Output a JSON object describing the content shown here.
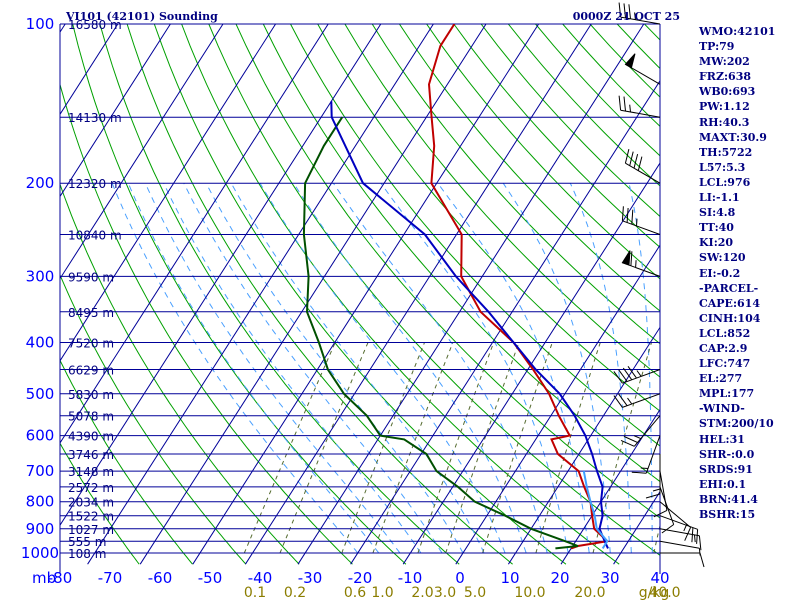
{
  "header": {
    "station": "VI101 (42101) Sounding",
    "time": "0000Z 21 OCT 25"
  },
  "indices": [
    "WMO:42101",
    "TP:79",
    "MW:202",
    "FRZ:638",
    "WB0:693",
    "PW:1.12",
    "RH:40.3",
    "MAXT:30.9",
    "TH:5722",
    "L57:5.3",
    "LCL:976",
    "LI:-1.1",
    "SI:4.8",
    "TT:40",
    "KI:20",
    "SW:120",
    "EI:-0.2",
    "-PARCEL-",
    "CAPE:614",
    "CINH:104",
    "LCL:852",
    "CAP:2.9",
    "LFC:747",
    "EL:277",
    "MPL:177",
    "-WIND-",
    "STM:200/10",
    "HEL:31",
    "SHR-:0.0",
    "SRDS:91",
    "EHI:0.1",
    "BRN:41.4",
    "BSHR:15"
  ],
  "chart_data": {
    "type": "line",
    "title": "VI101 (42101) Sounding",
    "subtitle": "0000Z 21 OCT 25",
    "pressure_unit": "mb",
    "mixing_ratio_unit": "g/kg",
    "pressure_ticks": [
      100,
      200,
      300,
      400,
      500,
      600,
      700,
      800,
      900,
      1000
    ],
    "pressure_gridlines": [
      100,
      150,
      200,
      250,
      300,
      350,
      400,
      450,
      500,
      550,
      600,
      650,
      700,
      750,
      800,
      850,
      900,
      950,
      1000
    ],
    "temperature_ticks": [
      -80,
      -70,
      -60,
      -50,
      -40,
      -30,
      -20,
      -10,
      0,
      10,
      20,
      30,
      40
    ],
    "temperature_tick_labels": [
      "-80",
      "-70",
      "-60",
      "-50",
      "-40",
      "-30",
      "-20",
      "-10",
      "0",
      "10",
      "20",
      "30",
      "40"
    ],
    "mixing_ratio_labels": [
      "0.1",
      "0.2",
      "0.6",
      "1.0",
      "2.0",
      "3.0",
      "5.0",
      "10.0",
      "20.0",
      "40.0"
    ],
    "mixing_ratio_label_temps": [
      -41,
      -33,
      -21,
      -15.5,
      -7.5,
      -3,
      3,
      14,
      26,
      41
    ],
    "heights": [
      {
        "p": 100,
        "label": "16580 m"
      },
      {
        "p": 150,
        "label": "14130 m"
      },
      {
        "p": 200,
        "label": "12320 m"
      },
      {
        "p": 250,
        "label": "10840 m"
      },
      {
        "p": 300,
        "label": "9590 m"
      },
      {
        "p": 350,
        "label": "8495 m"
      },
      {
        "p": 400,
        "label": "7520 m"
      },
      {
        "p": 450,
        "label": "6629 m"
      },
      {
        "p": 500,
        "label": "5830 m"
      },
      {
        "p": 550,
        "label": "5078 m"
      },
      {
        "p": 600,
        "label": "4390 m"
      },
      {
        "p": 650,
        "label": "3746 m"
      },
      {
        "p": 700,
        "label": "3148 m"
      },
      {
        "p": 750,
        "label": "2572 m"
      },
      {
        "p": 800,
        "label": "2034 m"
      },
      {
        "p": 850,
        "label": "1522 m"
      },
      {
        "p": 900,
        "label": "1027 m"
      },
      {
        "p": 950,
        "label": "555 m"
      },
      {
        "p": 1000,
        "label": "108 m"
      }
    ],
    "series": [
      {
        "name": "temperature",
        "color": "#c00000",
        "p": [
          100,
          110,
          130,
          150,
          170,
          200,
          250,
          300,
          350,
          400,
          450,
          500,
          550,
          600,
          610,
          650,
          700,
          750,
          800,
          850,
          900,
          950,
          970,
          980
        ],
        "t": [
          -66,
          -66,
          -63.5,
          -59,
          -55,
          -51,
          -39,
          -34,
          -26,
          -16,
          -9,
          -3,
          1.5,
          6,
          3,
          6,
          12,
          15,
          18,
          20,
          22,
          26,
          21,
          20
        ]
      },
      {
        "name": "dewpoint",
        "color": "#005000",
        "p": [
          150,
          170,
          200,
          250,
          300,
          350,
          400,
          450,
          500,
          550,
          600,
          610,
          650,
          700,
          750,
          800,
          850,
          900,
          950,
          970,
          980
        ],
        "t": [
          -76,
          -76,
          -75,
          -69,
          -63,
          -59,
          -53,
          -48,
          -42,
          -35,
          -30,
          -25,
          -19,
          -15,
          -9,
          -4,
          3.5,
          10,
          18,
          21,
          17
        ]
      },
      {
        "name": "parcel",
        "color": "#0000c0",
        "p": [
          140,
          150,
          200,
          250,
          300,
          350,
          400,
          450,
          500,
          550,
          600,
          650,
          700,
          750,
          800,
          850,
          900,
          950,
          980
        ],
        "t": [
          -80,
          -78,
          -64,
          -46,
          -35,
          -24.5,
          -16,
          -8.5,
          -1,
          4.5,
          9,
          12.5,
          15.5,
          18.5,
          20,
          22,
          23,
          25.5,
          27
        ]
      },
      {
        "name": "virtual-temperature",
        "color": "#40a0ff",
        "p": [
          700,
          750,
          800,
          850,
          900,
          950,
          980
        ],
        "t": [
          13,
          15.5,
          18,
          20.5,
          22.5,
          26,
          26
        ]
      }
    ],
    "winds": [
      {
        "p": 100,
        "dir": 280,
        "spd": 35
      },
      {
        "p": 130,
        "dir": 300,
        "spd": 50
      },
      {
        "p": 150,
        "dir": 280,
        "spd": 25
      },
      {
        "p": 200,
        "dir": 300,
        "spd": 40
      },
      {
        "p": 250,
        "dir": 290,
        "spd": 35
      },
      {
        "p": 300,
        "dir": 290,
        "spd": 65
      },
      {
        "p": 450,
        "dir": 250,
        "spd": 45
      },
      {
        "p": 500,
        "dir": 250,
        "spd": 25
      },
      {
        "p": 550,
        "dir": 220,
        "spd": 25
      },
      {
        "p": 600,
        "dir": 200,
        "spd": 15
      },
      {
        "p": 650,
        "dir": 180,
        "spd": 15
      },
      {
        "p": 700,
        "dir": 170,
        "spd": 10
      },
      {
        "p": 750,
        "dir": 160,
        "spd": 10
      },
      {
        "p": 800,
        "dir": 130,
        "spd": 15
      },
      {
        "p": 850,
        "dir": 110,
        "spd": 20
      },
      {
        "p": 900,
        "dir": 100,
        "spd": 15
      },
      {
        "p": 950,
        "dir": 100,
        "spd": 5
      },
      {
        "p": 1000,
        "dir": 90,
        "spd": 10
      }
    ]
  }
}
